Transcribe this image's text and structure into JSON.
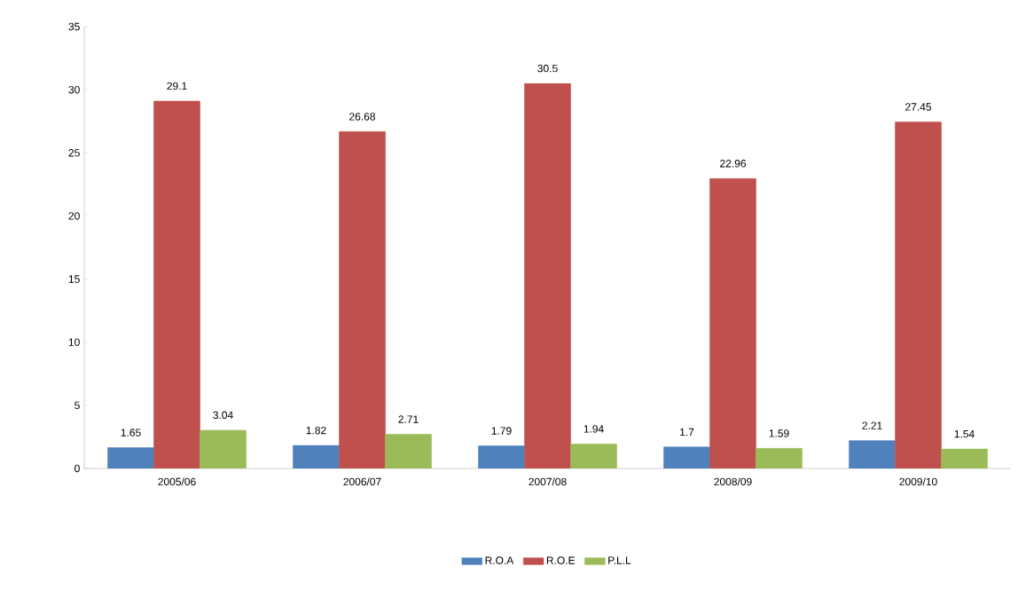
{
  "chart_data": {
    "type": "bar",
    "categories": [
      "2005/06",
      "2006/07",
      "2007/08",
      "2008/09",
      "2009/10"
    ],
    "series": [
      {
        "name": "R.O.A",
        "color": "#4f81bd",
        "values": [
          1.65,
          1.82,
          1.79,
          1.7,
          2.21
        ]
      },
      {
        "name": "R.O.E",
        "color": "#c0504d",
        "values": [
          29.1,
          26.68,
          30.5,
          22.96,
          27.45
        ]
      },
      {
        "name": "P.L.L",
        "color": "#9bbb59",
        "values": [
          3.04,
          2.71,
          1.94,
          1.59,
          1.54
        ]
      }
    ],
    "ylim": [
      0,
      35
    ],
    "yticks": [
      0,
      5,
      10,
      15,
      20,
      25,
      30,
      35
    ],
    "data_labels": true,
    "legend": "bottom",
    "grid": false
  }
}
